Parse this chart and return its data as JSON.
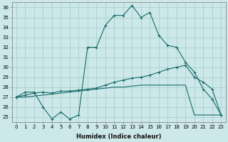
{
  "xlabel": "Humidex (Indice chaleur)",
  "bg_color": "#cce8e8",
  "grid_color": "#aacfcf",
  "line_color": "#1a6b6b",
  "xlim": [
    -0.5,
    23.5
  ],
  "ylim": [
    24.5,
    36.5
  ],
  "xticks": [
    0,
    1,
    2,
    3,
    4,
    5,
    6,
    7,
    8,
    9,
    10,
    11,
    12,
    13,
    14,
    15,
    16,
    17,
    18,
    19,
    20,
    21,
    22,
    23
  ],
  "yticks": [
    25,
    26,
    27,
    28,
    29,
    30,
    31,
    32,
    33,
    34,
    35,
    36
  ],
  "series1_x": [
    0,
    1,
    2,
    3,
    4,
    5,
    6,
    7,
    8,
    9,
    10,
    11,
    12,
    13,
    14,
    15,
    16,
    17,
    18,
    19,
    20,
    21,
    22,
    23
  ],
  "series1_y": [
    27.0,
    27.5,
    27.5,
    26.0,
    24.8,
    25.5,
    24.8,
    25.2,
    32.0,
    32.0,
    34.2,
    35.2,
    35.2,
    36.2,
    35.0,
    35.5,
    33.2,
    32.2,
    32.0,
    30.5,
    29.5,
    27.8,
    26.8,
    25.2
  ],
  "series2_x": [
    0,
    1,
    2,
    3,
    4,
    5,
    6,
    7,
    8,
    9,
    10,
    11,
    12,
    13,
    14,
    15,
    16,
    17,
    18,
    19,
    20,
    21,
    22,
    23
  ],
  "series2_y": [
    27.0,
    27.2,
    27.4,
    27.5,
    27.4,
    27.6,
    27.6,
    27.7,
    27.8,
    27.9,
    28.2,
    28.5,
    28.7,
    28.9,
    29.0,
    29.2,
    29.5,
    29.8,
    30.0,
    30.2,
    29.0,
    28.5,
    27.8,
    25.2
  ],
  "series3_x": [
    0,
    1,
    2,
    3,
    4,
    5,
    6,
    7,
    8,
    9,
    10,
    11,
    12,
    13,
    14,
    15,
    16,
    17,
    18,
    19,
    20,
    21,
    22,
    23
  ],
  "series3_y": [
    27.0,
    27.0,
    27.1,
    27.2,
    27.3,
    27.4,
    27.5,
    27.6,
    27.7,
    27.8,
    27.9,
    28.0,
    28.0,
    28.1,
    28.2,
    28.2,
    28.2,
    28.2,
    28.2,
    28.2,
    25.2,
    25.2,
    25.2,
    25.2
  ]
}
